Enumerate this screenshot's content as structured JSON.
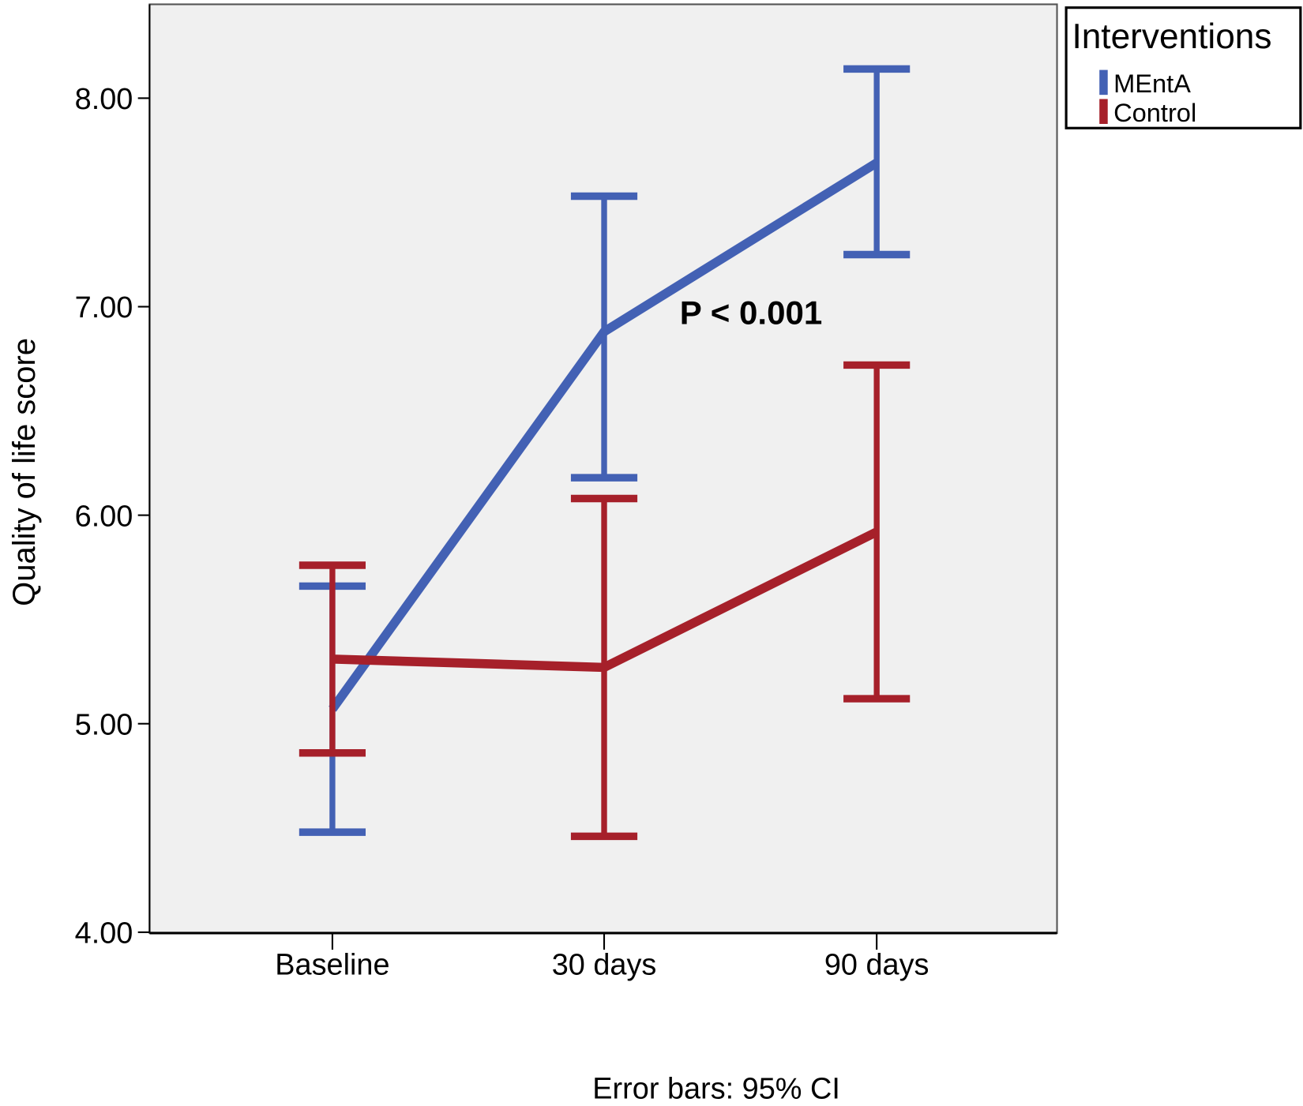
{
  "chart_data": {
    "type": "line",
    "title": "",
    "xlabel": "",
    "ylabel": "Quality of life score",
    "categories": [
      "Baseline",
      "30 days",
      "90 days"
    ],
    "ylim": [
      4.0,
      8.4
    ],
    "yticks": [
      "4.00",
      "5.00",
      "6.00",
      "7.00",
      "8.00"
    ],
    "ytick_values": [
      4,
      5,
      6,
      7,
      8
    ],
    "grid": false,
    "legend": {
      "title": "Interventions",
      "placement": "outside-top-right"
    },
    "series": [
      {
        "name": "MEntA",
        "color": "#4361b4",
        "values": [
          5.07,
          6.88,
          7.69
        ],
        "ci_low": [
          4.48,
          6.18,
          7.25
        ],
        "ci_high": [
          5.66,
          7.53,
          8.14
        ]
      },
      {
        "name": "Control",
        "color": "#a6202a",
        "values": [
          5.31,
          5.27,
          5.92
        ],
        "ci_low": [
          4.86,
          4.46,
          5.12
        ],
        "ci_high": [
          5.76,
          6.08,
          6.72
        ]
      }
    ],
    "annotations": [
      {
        "text": "P < 0.001",
        "x_between": [
          "30 days",
          "90 days"
        ],
        "y": 6.97
      }
    ],
    "footnote": "Error bars: 95% CI"
  }
}
